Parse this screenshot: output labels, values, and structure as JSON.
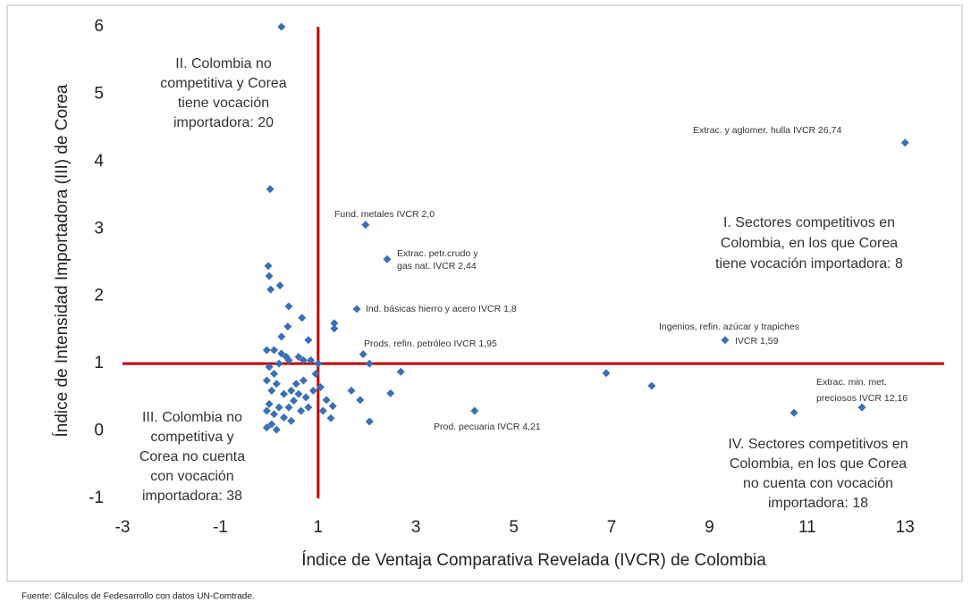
{
  "chart_data": {
    "type": "scatter",
    "x_label": "Índice de Ventaja Comparativa Revelada (IVCR) de Colombia",
    "y_label": "Índice de Intensidad Importadora (III) de Corea",
    "source": "Fuente: Cálculos  de Fedesarrollo con datos UN-Comtrade.",
    "color": "#3a6fb7",
    "x": [
      0.25,
      13.0,
      1.97,
      2.41,
      1.79,
      1.92,
      9.32,
      12.12,
      10.73,
      4.2,
      0.02,
      6.89,
      7.82,
      2.69,
      2.48,
      2.05,
      1.68,
      1.86,
      2.05,
      1.33,
      1.33,
      1.26,
      1.3,
      1.17,
      0.4,
      0.67,
      0.22,
      -0.02,
      0.0,
      0.03,
      0.38,
      -0.05,
      0.1,
      0.25,
      0.35,
      0.2,
      0.0,
      0.1,
      -0.05,
      0.15,
      0.05,
      0.3,
      0.45,
      0.55,
      0.7,
      0.6,
      0.75,
      0.5,
      0.4,
      0.2,
      0.0,
      -0.05,
      0.1,
      0.3,
      0.45,
      0.05,
      -0.05,
      0.15,
      0.65,
      0.8,
      0.9,
      0.95,
      0.7,
      0.85,
      1.0,
      0.8,
      0.6,
      0.25,
      0.4,
      1.05,
      1.1
    ],
    "values": [
      6.0,
      4.28,
      3.06,
      2.55,
      1.81,
      1.14,
      1.35,
      0.35,
      0.27,
      0.3,
      3.59,
      0.86,
      0.67,
      0.88,
      0.56,
      1.0,
      0.6,
      0.46,
      0.14,
      1.6,
      1.52,
      0.19,
      0.37,
      0.46,
      1.85,
      1.68,
      2.16,
      2.45,
      2.3,
      2.1,
      1.55,
      1.2,
      1.2,
      1.15,
      1.1,
      1.0,
      0.95,
      0.85,
      0.75,
      0.7,
      0.6,
      0.55,
      0.6,
      0.7,
      0.75,
      0.55,
      0.5,
      0.45,
      0.35,
      0.35,
      0.4,
      0.3,
      0.25,
      0.2,
      0.15,
      0.1,
      0.05,
      0.02,
      0.3,
      0.35,
      0.6,
      0.85,
      1.05,
      1.05,
      1.0,
      1.35,
      1.1,
      1.4,
      1.05,
      0.65,
      0.3
    ],
    "xlim": [
      -3,
      13.8
    ],
    "ylim": [
      -1,
      6
    ],
    "xticks": [
      -3,
      -1,
      1,
      3,
      5,
      7,
      9,
      11,
      13
    ],
    "yticks": [
      -1,
      0,
      1,
      2,
      3,
      4,
      5,
      6
    ],
    "reference_lines": {
      "x": 1,
      "y": 1,
      "color": "#c00000"
    },
    "annotations": [
      {
        "lines": [
          "II. Colombia  no",
          "competitiva y  Corea",
          "tiene vocación",
          "importadora: 20"
        ]
      },
      {
        "lines": [
          "I. Sectores competitivos en",
          "Colombia, en los que Corea",
          "tiene vocación importadora: 8"
        ]
      },
      {
        "lines": [
          "III. Colombia no",
          "competitiva y",
          "Corea no cuenta",
          "con vocación",
          "importadora: 38"
        ]
      },
      {
        "lines": [
          "IV. Sectores competitivos en",
          "Colombia, en los que Corea",
          "no cuenta con  vocación",
          "importadora: 18"
        ]
      },
      {
        "lines": [
          "Extrac. y aglomer. hulla IVCR 26,74"
        ]
      },
      {
        "lines": [
          "Fund. metales IVCR 2,0"
        ]
      },
      {
        "lines": [
          "Extrac. petr.crudo y",
          "gas nat.  IVCR 2,44"
        ]
      },
      {
        "lines": [
          "Ind. básicas hierro y acero IVCR 1,8"
        ]
      },
      {
        "lines": [
          "Prods. refin. petróleo IVCR 1,95"
        ]
      },
      {
        "lines": [
          "Ingenios, refin. azúcar y trapiches",
          "IVCR 1,59"
        ]
      },
      {
        "lines": [
          "Extrac. min. met.",
          "preciosos  IVCR 12,16"
        ]
      },
      {
        "lines": [
          "Prod. pecuaria IVCR 4,21"
        ]
      }
    ]
  }
}
